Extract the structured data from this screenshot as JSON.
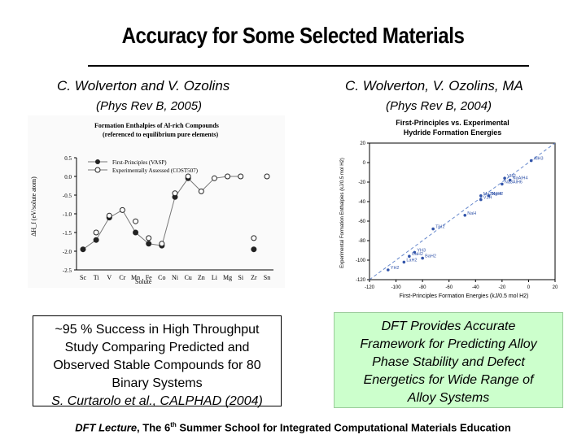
{
  "title": "Accuracy for Some Selected Materials",
  "left": {
    "author": "C. Wolverton and V. Ozolins",
    "ref": "(Phys Rev B, 2005)",
    "chart_data": {
      "type": "scatter",
      "title": "Formation Enthalpies of Al-rich Compounds",
      "subtitle": "(referenced to equilibrium pure elements)",
      "xlabel": "Solute",
      "ylabel": "ΔH_f (eV/solute atom)",
      "categories": [
        "Sc",
        "Ti",
        "V",
        "Cr",
        "Mn",
        "Fe",
        "Co",
        "Ni",
        "Cu",
        "Zn",
        "Li",
        "Mg",
        "Si",
        "Zr",
        "Sn"
      ],
      "ylim": [
        -2.5,
        0.5
      ],
      "yticks": [
        "0.5",
        "0.0",
        "-0.5",
        "-1.0",
        "-1.5",
        "-2.0",
        "-2.5"
      ],
      "series": [
        {
          "name": "First-Principles (VASP)",
          "values": [
            -1.95,
            -1.7,
            -1.1,
            null,
            -1.5,
            -1.8,
            -1.85,
            -0.55,
            -0.05,
            null,
            null,
            null,
            null,
            -1.95,
            null
          ]
        },
        {
          "name": "Experimentally Assessed (COST507)",
          "values": [
            null,
            -1.5,
            -1.05,
            -0.9,
            -1.2,
            -1.65,
            -1.8,
            -0.45,
            0.0,
            -0.4,
            -0.05,
            0.0,
            0.0,
            -1.65,
            0.0
          ]
        }
      ]
    }
  },
  "right": {
    "author": "C. Wolverton, V. Ozolins, MA",
    "ref": "(Phys Rev B, 2004)",
    "chart_data": {
      "type": "scatter",
      "title": "First-Principles vs. Experimental",
      "subtitle": "Hydride Formation Energies",
      "xlabel": "First-Principles Formation Energies (kJ/0.5 mol H2)",
      "ylabel": "Experimental Formation Enthalpies (kJ/0.5 mol H2)",
      "xlim": [
        -120,
        20
      ],
      "ylim": [
        -120,
        20
      ],
      "xticks": [
        "-120",
        "-100",
        "-80",
        "-60",
        "-40",
        "-20",
        "0",
        "20"
      ],
      "yticks": [
        "20",
        "0",
        "-20",
        "-40",
        "-60",
        "-80",
        "-100",
        "-120"
      ],
      "points": [
        {
          "label": "AlH3",
          "x": 2,
          "y": 2
        },
        {
          "label": "VH2",
          "x": -18,
          "y": -16
        },
        {
          "label": "NaAlH4",
          "x": -14,
          "y": -18
        },
        {
          "label": "Na3AlH6",
          "x": -20,
          "y": -22
        },
        {
          "label": "MgH2",
          "x": -30,
          "y": -34
        },
        {
          "label": "V2H",
          "x": -36,
          "y": -38
        },
        {
          "label": "Mg2NiH4",
          "x": -36,
          "y": -34
        },
        {
          "label": "NaH",
          "x": -48,
          "y": -54
        },
        {
          "label": "TiH2",
          "x": -72,
          "y": -68
        },
        {
          "label": "YH3",
          "x": -86,
          "y": -92
        },
        {
          "label": "CaH2",
          "x": -90,
          "y": -96
        },
        {
          "label": "BaH2",
          "x": -80,
          "y": -98
        },
        {
          "label": "LaH2",
          "x": -94,
          "y": -102
        },
        {
          "label": "YH2",
          "x": -106,
          "y": -110
        }
      ]
    }
  },
  "box_left": [
    "~95 % Success in High Throughput",
    "Study Comparing Predicted and",
    "Observed Stable Compounds for 80",
    "Binary Systems",
    "S. Curtarolo et al., CALPHAD (2004)"
  ],
  "box_right": [
    "DFT Provides Accurate",
    "Framework for Predicting Alloy",
    "Phase Stability and Defect",
    "Energetics for Wide Range of",
    "Alloy Systems"
  ],
  "footer": {
    "part1": "DFT Lecture",
    "part2": ", The 6",
    "sup": "th",
    "part3": " Summer School for Integrated Computational Materials Education"
  },
  "colors": {
    "line": "#777777",
    "marker": "#222222",
    "box_green": "#ccffcc"
  }
}
